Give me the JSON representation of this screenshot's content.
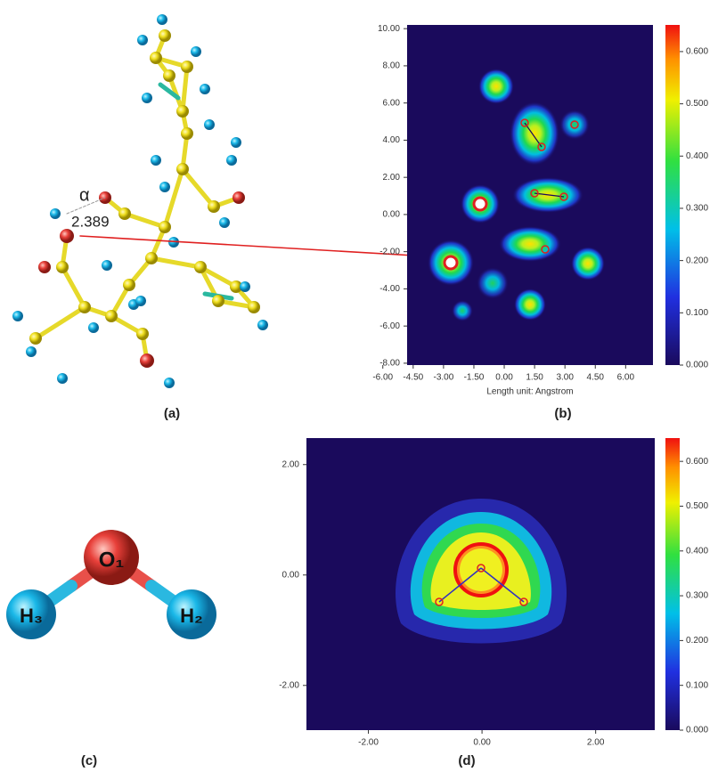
{
  "panel_a": {
    "label": "(a)",
    "angle_symbol": "α",
    "distance": "2.389"
  },
  "panel_b": {
    "label": "(b)",
    "x_axis_label": "Length unit: Angstrom",
    "xlim": [
      -4.8,
      7.35
    ],
    "ylim": [
      -8.1,
      10.2
    ],
    "xticks": [
      {
        "value": -6,
        "label": "-6.00"
      },
      {
        "value": -4.5,
        "label": "-4.50"
      },
      {
        "value": -3,
        "label": "-3.00"
      },
      {
        "value": -1.5,
        "label": "-1.50"
      },
      {
        "value": 0,
        "label": "0.00"
      },
      {
        "value": 1.5,
        "label": "1.50"
      },
      {
        "value": 3,
        "label": "3.00"
      },
      {
        "value": 4.5,
        "label": "4.50"
      },
      {
        "value": 6,
        "label": "6.00"
      }
    ],
    "yticks": [
      {
        "value": -8,
        "label": "-8.00"
      },
      {
        "value": -6,
        "label": "-6.00"
      },
      {
        "value": -4,
        "label": "-4.00"
      },
      {
        "value": -2,
        "label": "-2.00"
      },
      {
        "value": 0,
        "label": "0.00"
      },
      {
        "value": 2,
        "label": "2.00"
      },
      {
        "value": 4,
        "label": "4.00"
      },
      {
        "value": 6,
        "label": "6.00"
      },
      {
        "value": 8,
        "label": "8.00"
      },
      {
        "value": 10,
        "label": "10.00"
      }
    ],
    "colorbar": {
      "lim": [
        0,
        0.651
      ],
      "ticks": [
        {
          "value": 0,
          "label": "0.000"
        },
        {
          "value": 0.1,
          "label": "0.100"
        },
        {
          "value": 0.2,
          "label": "0.200"
        },
        {
          "value": 0.3,
          "label": "0.300"
        },
        {
          "value": 0.4,
          "label": "0.400"
        },
        {
          "value": 0.5,
          "label": "0.500"
        },
        {
          "value": 0.6,
          "label": "0.600"
        }
      ]
    }
  },
  "panel_c": {
    "label": "(c)",
    "atoms": [
      "O₁",
      "H₃",
      "H₂"
    ]
  },
  "panel_d": {
    "label": "(d)",
    "xlim": [
      -3.09,
      3.04
    ],
    "ylim": [
      -2.81,
      2.48
    ],
    "xticks": [
      {
        "value": -2,
        "label": "-2.00"
      },
      {
        "value": 0,
        "label": "0.00"
      },
      {
        "value": 2,
        "label": "2.00"
      }
    ],
    "yticks": [
      {
        "value": -2,
        "label": "-2.00"
      },
      {
        "value": 0,
        "label": "0.00"
      },
      {
        "value": 2,
        "label": "2.00"
      }
    ],
    "colorbar": {
      "lim": [
        0,
        0.652
      ],
      "ticks": [
        {
          "value": 0,
          "label": "0.000"
        },
        {
          "value": 0.1,
          "label": "0.100"
        },
        {
          "value": 0.2,
          "label": "0.200"
        },
        {
          "value": 0.3,
          "label": "0.300"
        },
        {
          "value": 0.4,
          "label": "0.400"
        },
        {
          "value": 0.5,
          "label": "0.500"
        },
        {
          "value": 0.6,
          "label": "0.600"
        }
      ]
    }
  }
}
